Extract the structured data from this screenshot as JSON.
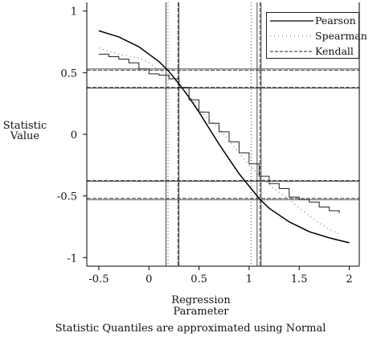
{
  "chart_data": {
    "type": "line",
    "xlabel": "Regression Parameter",
    "xlabel_lines": [
      "Regression",
      "Parameter"
    ],
    "ylabel_lines": [
      "Statistic",
      "Value"
    ],
    "caption": "Statistic Quantiles are approximated using Normal",
    "xlim": [
      -0.62,
      2.1
    ],
    "ylim": [
      -1.07,
      1.07
    ],
    "x_ticks": [
      -0.5,
      0,
      0.5,
      1,
      1.5,
      2
    ],
    "x_tick_labels": [
      "-0.5",
      "0",
      "0.5",
      "1",
      "1.5",
      "2"
    ],
    "y_ticks": [
      -1,
      -0.5,
      0,
      0.5,
      1
    ],
    "y_tick_labels": [
      "-1",
      "-0.5",
      "0",
      "0.5",
      "1"
    ],
    "legend_position": "top-right",
    "grid": false,
    "series": [
      {
        "name": "Pearson",
        "style": "solid",
        "x": [
          -0.5,
          -0.3,
          -0.1,
          0.1,
          0.2,
          0.3,
          0.4,
          0.5,
          0.6,
          0.7,
          0.8,
          0.9,
          1.0,
          1.1,
          1.2,
          1.4,
          1.6,
          1.8,
          2.0
        ],
        "y": [
          0.84,
          0.79,
          0.71,
          0.59,
          0.51,
          0.41,
          0.3,
          0.18,
          0.05,
          -0.08,
          -0.2,
          -0.32,
          -0.42,
          -0.52,
          -0.6,
          -0.71,
          -0.79,
          -0.84,
          -0.88
        ]
      },
      {
        "name": "Spearman",
        "style": "dotted",
        "x": [
          -0.5,
          -0.3,
          -0.1,
          0.0,
          0.1,
          0.2,
          0.3,
          0.4,
          0.5,
          0.6,
          0.7,
          0.8,
          0.9,
          1.0,
          1.1,
          1.2,
          1.3,
          1.4,
          1.5,
          1.6,
          1.7,
          1.8,
          1.9
        ],
        "y": [
          0.7,
          0.65,
          0.62,
          0.58,
          0.52,
          0.48,
          0.4,
          0.32,
          0.2,
          0.12,
          0.05,
          -0.05,
          -0.15,
          -0.25,
          -0.33,
          -0.41,
          -0.47,
          -0.53,
          -0.6,
          -0.66,
          -0.72,
          -0.77,
          -0.81
        ]
      },
      {
        "name": "Kendall",
        "style": "dashed",
        "x": [
          -0.5,
          -0.4,
          -0.3,
          -0.2,
          -0.1,
          0.0,
          0.1,
          0.2,
          0.3,
          0.4,
          0.5,
          0.6,
          0.7,
          0.8,
          0.9,
          1.0,
          1.1,
          1.2,
          1.3,
          1.4,
          1.5,
          1.6,
          1.7,
          1.8,
          1.9
        ],
        "y": [
          0.65,
          0.63,
          0.61,
          0.58,
          0.53,
          0.49,
          0.48,
          0.45,
          0.38,
          0.28,
          0.18,
          0.09,
          0.02,
          -0.06,
          -0.15,
          -0.24,
          -0.34,
          -0.4,
          -0.44,
          -0.51,
          -0.53,
          -0.55,
          -0.59,
          -0.62,
          -0.64
        ]
      }
    ],
    "reference_lines": {
      "horizontal": [
        {
          "y": 0.53,
          "style": "solid"
        },
        {
          "y": 0.52,
          "style": "dashed"
        },
        {
          "y": 0.38,
          "style": "dashed"
        },
        {
          "y": 0.375,
          "style": "solid"
        },
        {
          "y": -0.375,
          "style": "dashed"
        },
        {
          "y": -0.38,
          "style": "solid"
        },
        {
          "y": -0.52,
          "style": "dashed"
        },
        {
          "y": -0.53,
          "style": "solid"
        }
      ],
      "vertical": [
        {
          "x": 0.17,
          "style": "solid"
        },
        {
          "x": 0.19,
          "style": "dotted"
        },
        {
          "x": 0.29,
          "style": "dashed"
        },
        {
          "x": 0.3,
          "style": "solid"
        },
        {
          "x": 1.02,
          "style": "dotted"
        },
        {
          "x": 1.08,
          "style": "solid"
        },
        {
          "x": 1.11,
          "style": "dashed"
        },
        {
          "x": 1.12,
          "style": "solid"
        }
      ]
    }
  }
}
